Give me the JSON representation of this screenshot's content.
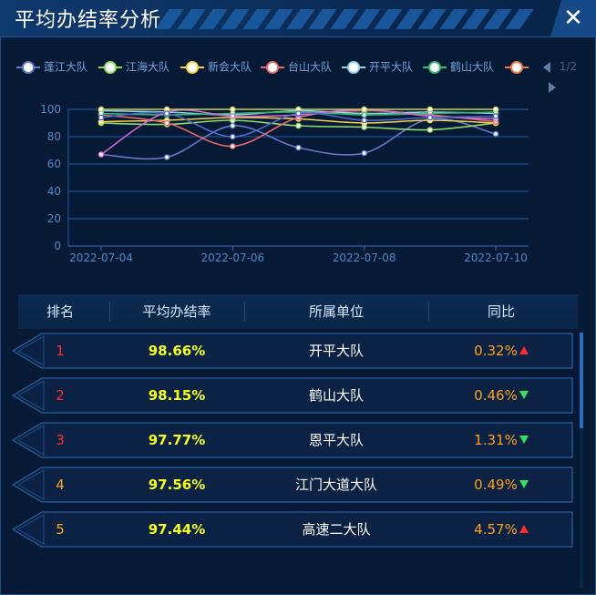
{
  "header": {
    "title": "平均办结率分析",
    "close_glyph": "✕"
  },
  "legend": {
    "items": [
      {
        "label": "蓬江大队",
        "color": "#6479c9"
      },
      {
        "label": "江海大队",
        "color": "#8fdc6a"
      },
      {
        "label": "新会大队",
        "color": "#f5d24a"
      },
      {
        "label": "台山大队",
        "color": "#e86a6a"
      },
      {
        "label": "开平大队",
        "color": "#8fd3e8"
      },
      {
        "label": "鹤山大队",
        "color": "#35b872"
      },
      {
        "label": "",
        "color": "#f07a4a"
      }
    ],
    "page_indicator": "1/2"
  },
  "chart_data": {
    "type": "line",
    "x": [
      "2022-07-04",
      "2022-07-05",
      "2022-07-06",
      "2022-07-07",
      "2022-07-08",
      "2022-07-09",
      "2022-07-10"
    ],
    "x_tick_labels": [
      "2022-07-04",
      "2022-07-06",
      "2022-07-08",
      "2022-07-10"
    ],
    "ylim": [
      0,
      100
    ],
    "y_ticks": [
      0,
      20,
      40,
      60,
      80,
      100
    ],
    "grid": true,
    "series": [
      {
        "name": "蓬江大队",
        "color": "#6479c9",
        "values": [
          67,
          65,
          88,
          72,
          68,
          93,
          82
        ]
      },
      {
        "name": "江海大队",
        "color": "#8fdc6a",
        "values": [
          90,
          89,
          92,
          88,
          87,
          85,
          90
        ]
      },
      {
        "name": "新会大队",
        "color": "#f5d24a",
        "values": [
          91,
          92,
          94,
          93,
          90,
          92,
          90
        ]
      },
      {
        "name": "台山大队",
        "color": "#e86a6a",
        "values": [
          96,
          90,
          73,
          94,
          99,
          96,
          91
        ]
      },
      {
        "name": "开平大队",
        "color": "#8fd3e8",
        "values": [
          99,
          98,
          96,
          99,
          97,
          98,
          97
        ]
      },
      {
        "name": "鹤山大队",
        "color": "#35b872",
        "values": [
          97,
          96,
          97,
          98,
          96,
          97,
          98
        ]
      },
      {
        "name": "",
        "color": "#d06ad8",
        "values": [
          67,
          98,
          95,
          96,
          100,
          95,
          93
        ]
      },
      {
        "name": "",
        "color": "#c7d35a",
        "values": [
          100,
          100,
          100,
          100,
          100,
          100,
          100
        ]
      },
      {
        "name": "",
        "color": "#4f68c8",
        "values": [
          94,
          97,
          80,
          97,
          92,
          94,
          95
        ]
      }
    ]
  },
  "table": {
    "headers": [
      "排名",
      "平均办结率",
      "所属单位",
      "同比"
    ],
    "rows": [
      {
        "rank": "1",
        "rate": "98.66%",
        "unit": "开平大队",
        "yoy": "0.32%",
        "trend": "up",
        "rank_color": "#ff2b2b"
      },
      {
        "rank": "2",
        "rate": "98.15%",
        "unit": "鹤山大队",
        "yoy": "0.46%",
        "trend": "down",
        "rank_color": "#ff2b2b"
      },
      {
        "rank": "3",
        "rate": "97.77%",
        "unit": "恩平大队",
        "yoy": "1.31%",
        "trend": "down",
        "rank_color": "#ff2b2b"
      },
      {
        "rank": "4",
        "rate": "97.56%",
        "unit": "江门大道大队",
        "yoy": "0.49%",
        "trend": "down",
        "rank_color": "#ffa11a"
      },
      {
        "rank": "5",
        "rate": "97.44%",
        "unit": "高速二大队",
        "yoy": "4.57%",
        "trend": "up",
        "rank_color": "#ffa11a"
      }
    ]
  }
}
